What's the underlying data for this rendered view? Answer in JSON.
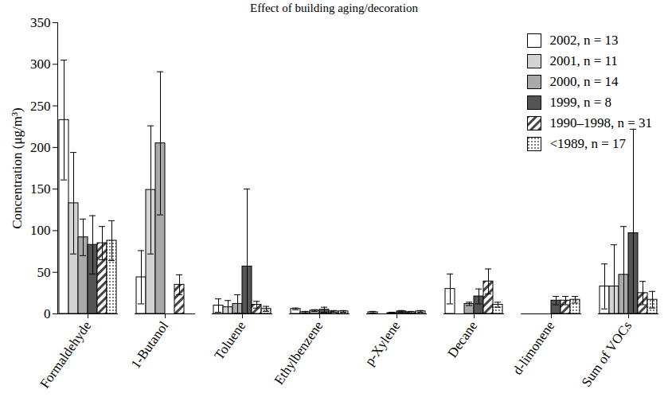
{
  "chart_data": {
    "type": "bar",
    "title": "Effect of building aging/decoration",
    "y_label": "Concentration (μg/m³)",
    "categories": [
      "Formaldehyde",
      "1-Butanol",
      "Toluene",
      "Ethylbenzene",
      "p-Xylene",
      "Decane",
      "d-limonene",
      "Sum of VOCs"
    ],
    "series": [
      {
        "name": "2002, n = 13",
        "color": "#ffffff",
        "values": [
          233,
          44,
          10,
          6,
          2,
          30,
          null,
          33
        ],
        "errors": [
          72,
          32,
          8,
          1,
          1,
          18,
          null,
          27
        ]
      },
      {
        "name": "2001, n = 11",
        "color": "#d3d3d3",
        "values": [
          133,
          149,
          8,
          2,
          null,
          null,
          null,
          33
        ],
        "errors": [
          61,
          77,
          8,
          1,
          null,
          null,
          null,
          50
        ]
      },
      {
        "name": "2000, n = 14",
        "color": "#a9a9a9",
        "values": [
          92,
          205,
          12,
          4,
          1,
          12,
          null,
          47
        ],
        "errors": [
          22,
          86,
          11,
          1,
          1,
          2,
          null,
          58
        ]
      },
      {
        "name": "1999, n = 8",
        "color": "#555555",
        "values": [
          83,
          null,
          57,
          5,
          3,
          21,
          16,
          97
        ],
        "errors": [
          35,
          null,
          93,
          3,
          1,
          9,
          5,
          125
        ]
      },
      {
        "name": "1990–1998, n = 31",
        "color": "#444444",
        "marker": "hatch",
        "values": [
          85,
          35,
          11,
          3,
          2,
          39,
          16,
          25
        ],
        "errors": [
          20,
          12,
          4,
          1,
          1,
          15,
          5,
          14
        ]
      },
      {
        "name": "<1989, n = 17",
        "color": "#555555",
        "marker": "dots",
        "values": [
          88,
          null,
          6,
          3,
          3,
          11,
          17,
          17
        ],
        "errors": [
          24,
          null,
          3,
          1,
          1,
          3,
          4,
          10
        ]
      }
    ],
    "ylim": [
      0,
      350
    ],
    "yticks": [
      0,
      50,
      100,
      150,
      200,
      250,
      300,
      350
    ],
    "grid": false,
    "legend": "top-right"
  }
}
